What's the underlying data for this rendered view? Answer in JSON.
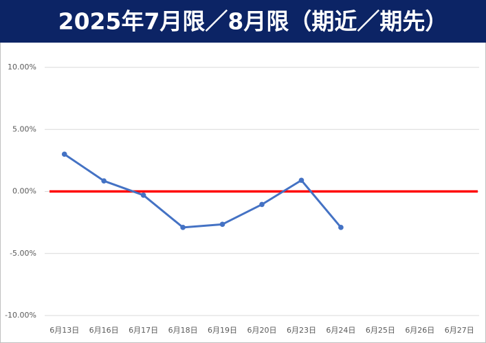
{
  "chart_data": {
    "type": "line",
    "title": "2025年7月限／8月限（期近／期先）",
    "categories": [
      "6月13日",
      "6月16日",
      "6月17日",
      "6月18日",
      "6月19日",
      "6月20日",
      "6月23日",
      "6月24日",
      "6月25日",
      "6月26日",
      "6月27日"
    ],
    "series": [
      {
        "color": "#4472c4",
        "values": [
          3.0,
          0.85,
          -0.3,
          -2.9,
          -2.65,
          -1.05,
          0.9,
          -2.9,
          null,
          null,
          null
        ]
      }
    ],
    "ylim": [
      -10,
      10
    ],
    "yticks": [
      {
        "value": -10,
        "label": "-10.00%"
      },
      {
        "value": -5,
        "label": "-5.00%"
      },
      {
        "value": 0,
        "label": "0.00%"
      },
      {
        "value": 5,
        "label": "5.00%"
      },
      {
        "value": 10,
        "label": "10.00%"
      }
    ],
    "grid": true,
    "reference_line": {
      "value": 0,
      "color": "#ff0000"
    }
  }
}
